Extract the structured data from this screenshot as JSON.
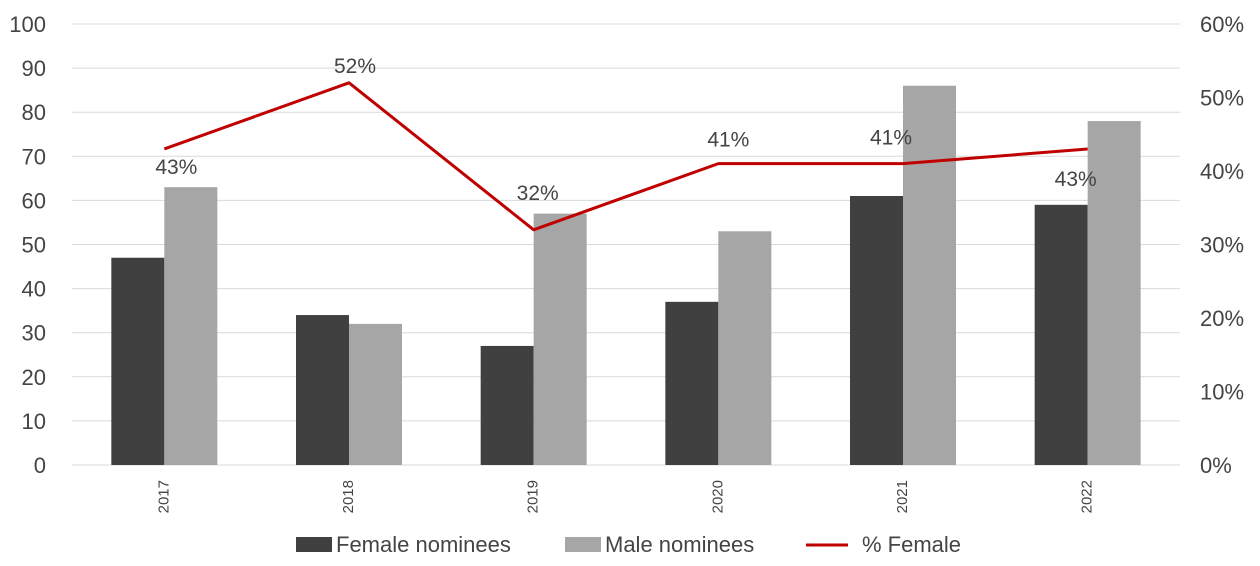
{
  "chart_data": {
    "type": "bar",
    "categories": [
      "2017",
      "2018",
      "2019",
      "2020",
      "2021",
      "2022"
    ],
    "series": [
      {
        "name": "Female nominees",
        "type": "bar",
        "axis": "left",
        "color": "#404040",
        "values": [
          47,
          34,
          27,
          37,
          61,
          59
        ]
      },
      {
        "name": "Male nominees",
        "type": "bar",
        "axis": "left",
        "color": "#a6a6a6",
        "values": [
          63,
          32,
          57,
          53,
          86,
          78
        ]
      },
      {
        "name": "% Female",
        "type": "line",
        "axis": "right",
        "color": "#c00000",
        "values": [
          0.43,
          0.52,
          0.32,
          0.41,
          0.41,
          0.43
        ],
        "labels": [
          "43%",
          "52%",
          "32%",
          "41%",
          "41%",
          "43%"
        ]
      }
    ],
    "left_axis": {
      "ylim": [
        0,
        100
      ],
      "ticks": [
        "0",
        "10",
        "20",
        "30",
        "40",
        "50",
        "60",
        "70",
        "80",
        "90",
        "100"
      ]
    },
    "right_axis": {
      "ylim": [
        0,
        0.6
      ],
      "ticks": [
        "0%",
        "10%",
        "20%",
        "30%",
        "40%",
        "50%",
        "60%"
      ]
    },
    "grid": true,
    "legend_position": "bottom"
  }
}
